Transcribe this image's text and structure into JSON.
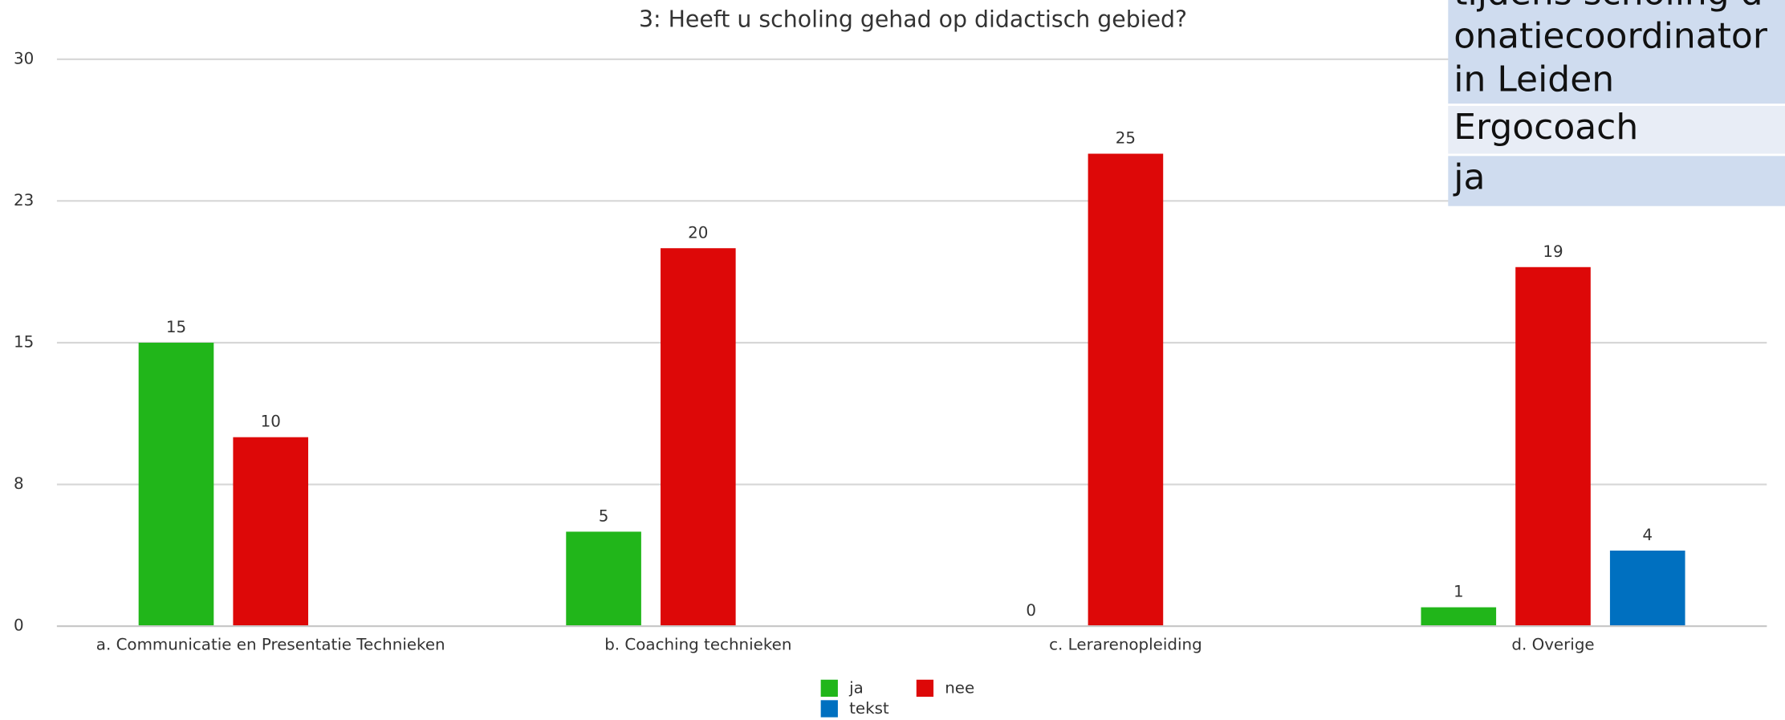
{
  "chart_data": {
    "type": "bar",
    "title": "3: Heeft u scholing gehad op didactisch gebied?",
    "categories": [
      "a. Communicatie en Presentatie Technieken",
      "b. Coaching technieken",
      "c. Lerarenopleiding",
      "d. Overige"
    ],
    "series": [
      {
        "name": "ja",
        "color": "#21b61a",
        "values": [
          15,
          5,
          0,
          1
        ]
      },
      {
        "name": "nee",
        "color": "#dd0808",
        "values": [
          10,
          20,
          25,
          19
        ]
      },
      {
        "name": "tekst",
        "color": "#0070c0",
        "values": [
          null,
          null,
          null,
          4
        ]
      }
    ],
    "ylim": [
      0,
      30
    ],
    "yticks": [
      0,
      {
        "value": 7.5,
        "label": "8"
      },
      15,
      {
        "value": 22.5,
        "label": "23"
      },
      30
    ],
    "grid": true
  },
  "overlay": {
    "rows": [
      "tijdens scholing donatiecoordinator in Leiden",
      "Ergocoach",
      "ja"
    ]
  }
}
